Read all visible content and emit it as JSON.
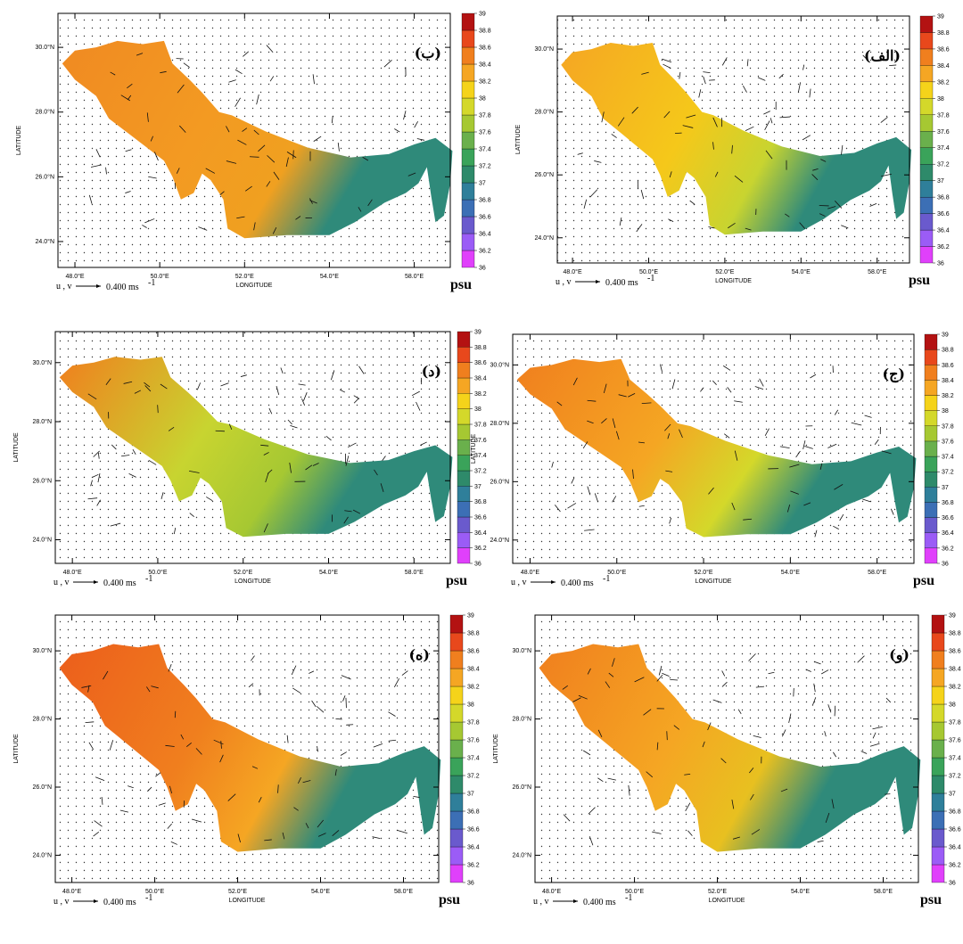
{
  "figure": {
    "x_axis": {
      "title": "LONGITUDE",
      "tick_labels": [
        "48.0°E",
        "50.0°E",
        "52.0°E",
        "54.0°E",
        "58.0°E"
      ]
    },
    "y_axis": {
      "title": "LATITUDE",
      "tick_labels": [
        "24.0°N",
        "26.0°N",
        "28.0°N",
        "30.0°N"
      ]
    },
    "vector_key": {
      "components": "u , v",
      "magnitude": "0.400 ms",
      "exponent": "-1"
    },
    "colorbar": {
      "unit": "psu",
      "ticks": [
        36,
        36.2,
        36.4,
        36.6,
        36.8,
        37,
        37.2,
        37.4,
        37.6,
        37.8,
        38,
        38.2,
        38.4,
        38.6,
        38.8,
        39
      ],
      "colors": [
        "#e040fb",
        "#9b5cf6",
        "#6a5acd",
        "#3c6fb5",
        "#2f7f9a",
        "#2e8a6a",
        "#3aa35a",
        "#6ab04c",
        "#a6c832",
        "#d4d82a",
        "#f5d31a",
        "#f5a623",
        "#f07f1e",
        "#e8481c",
        "#b31212"
      ]
    },
    "panels": [
      {
        "label": "(ب)"
      },
      {
        "label": "(الف)"
      },
      {
        "label": "(د)"
      },
      {
        "label": "(ج)"
      },
      {
        "label": "(ه)"
      },
      {
        "label": "(و)"
      }
    ]
  }
}
